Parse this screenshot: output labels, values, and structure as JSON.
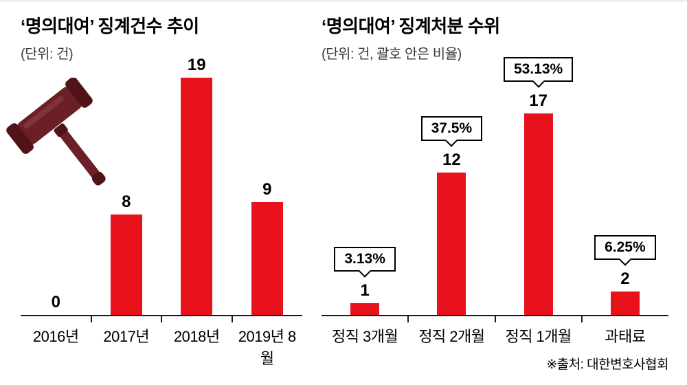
{
  "source": "※출처: 대한변호사협회",
  "accent_color": "#e8121c",
  "decorations": {
    "gavel_icon": "gavel-icon"
  },
  "chart_data": [
    {
      "type": "bar",
      "title": "‘명의대여’ 징계건수 추이",
      "subtitle": "(단위: 건)",
      "categories": [
        "2016년",
        "2017년",
        "2018년",
        "2019년 8월"
      ],
      "values": [
        0,
        8,
        19,
        9
      ],
      "ylim": [
        0,
        20
      ],
      "bar_color": "#e8121c",
      "grid": false,
      "legend": "none"
    },
    {
      "type": "bar",
      "title": "‘명의대여’ 징계처분 수위",
      "subtitle": "(단위: 건, 괄호 안은 비율)",
      "categories": [
        "정직 3개월",
        "정직 2개월",
        "정직 1개월",
        "과태료"
      ],
      "values": [
        1,
        12,
        17,
        2
      ],
      "percent_labels": [
        "3.13%",
        "37.5%",
        "53.13%",
        "6.25%"
      ],
      "ylim": [
        0,
        18
      ],
      "bar_color": "#e8121c",
      "grid": false,
      "legend": "none"
    }
  ]
}
